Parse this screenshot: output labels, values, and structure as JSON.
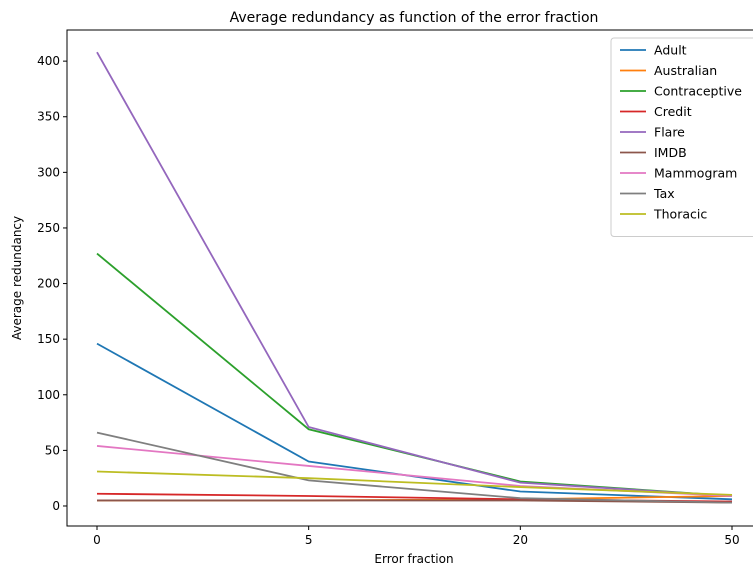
{
  "chart_data": {
    "type": "line",
    "title": "Average redundancy as function of the error fraction",
    "xlabel": "Error fraction",
    "ylabel": "Average redundancy",
    "categories": [
      "0",
      "5",
      "20",
      "50"
    ],
    "ylim": [
      -18,
      428
    ],
    "yticks": [
      0,
      50,
      100,
      150,
      200,
      250,
      300,
      350,
      400
    ],
    "grid": false,
    "legend_position": "top-right",
    "series": [
      {
        "name": "Adult",
        "color": "#1f77b4",
        "values": [
          146,
          40,
          13,
          6
        ]
      },
      {
        "name": "Australian",
        "color": "#ff7f0e",
        "values": [
          5,
          5,
          6,
          9
        ]
      },
      {
        "name": "Contraceptive",
        "color": "#2ca02c",
        "values": [
          227,
          69,
          22,
          9
        ]
      },
      {
        "name": "Credit",
        "color": "#d62728",
        "values": [
          11,
          9,
          6,
          4
        ]
      },
      {
        "name": "Flare",
        "color": "#9467bd",
        "values": [
          408,
          71,
          21,
          9
        ]
      },
      {
        "name": "IMDB",
        "color": "#8c564b",
        "values": [
          5,
          5,
          5,
          3
        ]
      },
      {
        "name": "Mammogram",
        "color": "#e377c2",
        "values": [
          54,
          36,
          18,
          9
        ]
      },
      {
        "name": "Tax",
        "color": "#7f7f7f",
        "values": [
          66,
          23,
          7,
          3
        ]
      },
      {
        "name": "Thoracic",
        "color": "#bcbd22",
        "values": [
          31,
          25,
          17,
          10
        ]
      }
    ]
  }
}
